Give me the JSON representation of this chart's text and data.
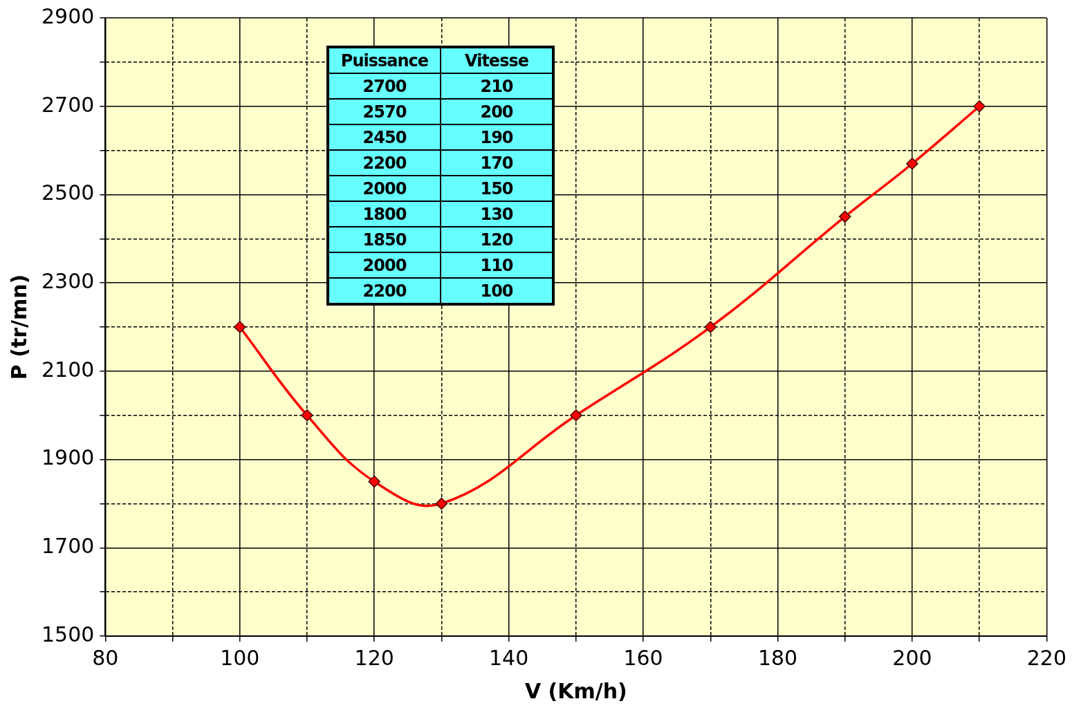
{
  "chart_data": {
    "type": "line",
    "xlabel": "V (Km/h)",
    "ylabel": "P (tr/mn)",
    "x": [
      100,
      110,
      120,
      130,
      150,
      170,
      190,
      200,
      210
    ],
    "series": [
      {
        "color": "#ff0000",
        "values": [
          2200,
          2000,
          1850,
          1800,
          2000,
          2200,
          2450,
          2570,
          2700
        ]
      }
    ],
    "xlim": [
      80,
      220
    ],
    "xticks": [
      80,
      {
        "value": 90,
        "label": null
      },
      100,
      {
        "value": 110,
        "label": null
      },
      120,
      {
        "value": 130,
        "label": null
      },
      140,
      {
        "value": 150,
        "label": null
      },
      160,
      {
        "value": 170,
        "label": null
      },
      180,
      {
        "value": 190,
        "label": null
      },
      200,
      {
        "value": 210,
        "label": null
      },
      220
    ],
    "ylim": [
      1500,
      2900
    ],
    "yticks": [
      1500,
      {
        "value": 1600,
        "label": null
      },
      1700,
      {
        "value": 1800,
        "label": null
      },
      1900,
      {
        "value": 2000,
        "label": null
      },
      2100,
      {
        "value": 2200,
        "label": null
      },
      2300,
      {
        "value": 2400,
        "label": null
      },
      2500,
      {
        "value": 2600,
        "label": null
      },
      2700,
      {
        "value": 2800,
        "label": null
      },
      2900
    ],
    "grid": true,
    "marker": "diamond",
    "line_style": "solid",
    "annotations": [
      "Puissance",
      "Vitesse",
      "2700",
      "210",
      "2570",
      "200",
      "2450",
      "190",
      "2200",
      "170",
      "2000",
      "150",
      "1800",
      "130",
      "1850",
      "120",
      "2000",
      "110",
      "2200",
      "100"
    ]
  }
}
